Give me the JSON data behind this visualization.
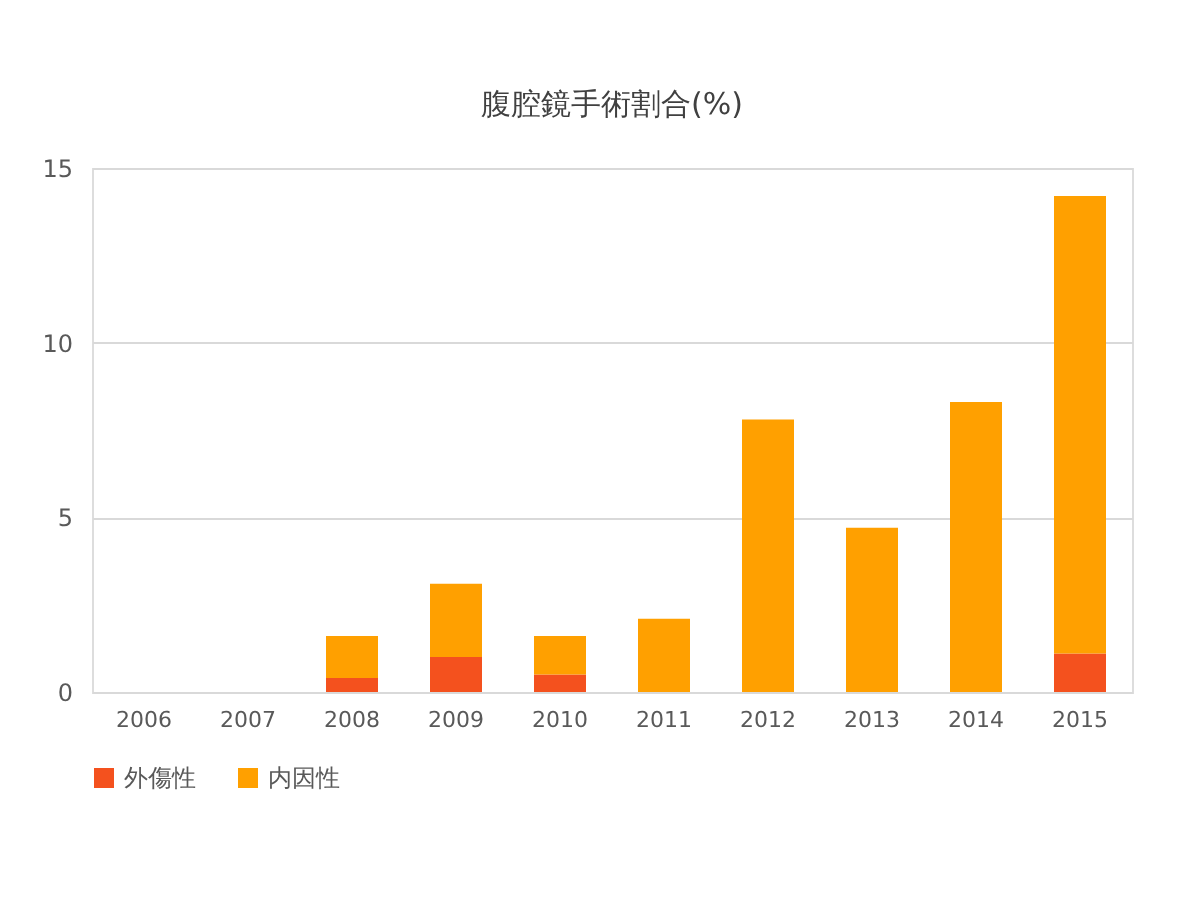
{
  "chart_data": {
    "type": "bar",
    "title": "腹腔鏡手術割合(%)",
    "stacked": true,
    "categories": [
      "2006",
      "2007",
      "2008",
      "2009",
      "2010",
      "2011",
      "2012",
      "2013",
      "2014",
      "2015"
    ],
    "series": [
      {
        "name": "外傷性",
        "color": "#f4511e",
        "values": [
          null,
          null,
          0.4,
          1.0,
          0.5,
          null,
          null,
          null,
          null,
          1.1
        ]
      },
      {
        "name": "内因性",
        "color": "#ffa000",
        "values": [
          null,
          null,
          1.2,
          2.1,
          1.1,
          2.1,
          7.8,
          4.7,
          8.3,
          13.1
        ]
      }
    ],
    "ylim": [
      0,
      15
    ],
    "yticks": [
      0,
      5,
      10,
      15
    ],
    "grid": "y",
    "legend": "bottom"
  }
}
